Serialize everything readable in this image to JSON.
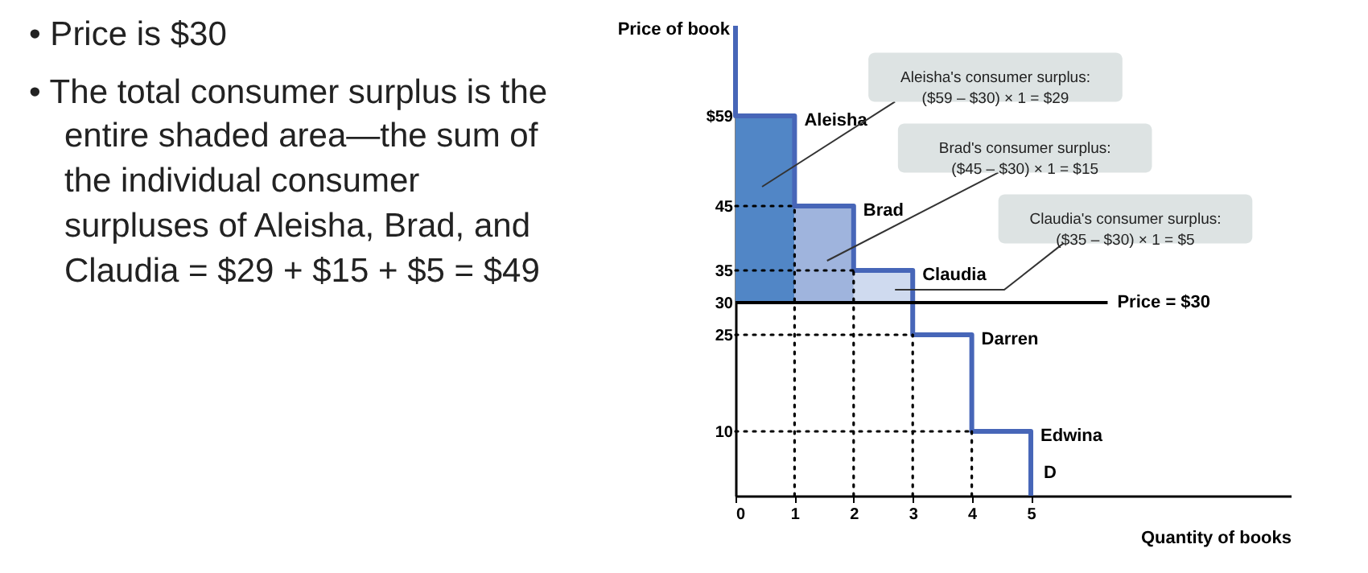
{
  "chart_data": {
    "type": "line",
    "xlabel": "Quantity of books",
    "ylabel": "Price of book",
    "xlim": [
      0,
      9.4
    ],
    "ylim": [
      0,
      73
    ],
    "xticks": [
      0,
      1,
      2,
      3,
      4,
      5
    ],
    "yticks": [
      10,
      25,
      30,
      35,
      45,
      {
        "value": 59,
        "label": "$59"
      }
    ],
    "grid": false,
    "series": [
      {
        "type": "bar",
        "x": [
          0.5,
          1.5,
          2.5
        ],
        "base": [
          30,
          30,
          30
        ],
        "values": [
          29,
          15,
          5
        ],
        "colors": [
          "#5186c6",
          "#9fb4dd",
          "#cfdaef"
        ]
      },
      {
        "name": "D",
        "color": "#4766b8",
        "x": [
          0,
          0,
          1,
          1,
          2,
          2,
          3,
          3,
          4,
          4,
          5,
          5
        ],
        "values": [
          73,
          59,
          59,
          45,
          45,
          35,
          35,
          25,
          25,
          10,
          10,
          0
        ]
      },
      {
        "name": "Price = $30",
        "color": "#000000",
        "x": [
          0,
          6.3
        ],
        "values": [
          30,
          30
        ]
      },
      {
        "color": "#000000",
        "line_style": "dotted",
        "x": [
          0,
          1
        ],
        "values": [
          45,
          45
        ]
      },
      {
        "color": "#000000",
        "line_style": "dotted",
        "x": [
          0,
          2
        ],
        "values": [
          35,
          35
        ]
      },
      {
        "color": "#000000",
        "line_style": "dotted",
        "x": [
          0,
          3
        ],
        "values": [
          25,
          25
        ]
      },
      {
        "color": "#000000",
        "line_style": "dotted",
        "x": [
          0,
          4
        ],
        "values": [
          10,
          10
        ]
      },
      {
        "color": "#000000",
        "line_style": "dotted",
        "x": [
          1,
          1
        ],
        "values": [
          0,
          45
        ]
      },
      {
        "color": "#000000",
        "line_style": "dotted",
        "x": [
          2,
          2
        ],
        "values": [
          0,
          35
        ]
      },
      {
        "color": "#000000",
        "line_style": "dotted",
        "x": [
          3,
          3
        ],
        "values": [
          0,
          25
        ]
      },
      {
        "color": "#000000",
        "line_style": "dotted",
        "x": [
          4,
          4
        ],
        "values": [
          0,
          10
        ]
      }
    ],
    "annotations": [
      "• Price is $30",
      "• The total consumer surplus is the entire shaded area—the sum of the individual consumer surpluses of Aleisha, Brad, and Claudia = $29 + $15 + $5 = $49",
      {
        "text": "Aleisha",
        "x": 1,
        "y": 59
      },
      {
        "text": "Brad",
        "x": 2,
        "y": 45
      },
      {
        "text": "Claudia",
        "x": 3,
        "y": 35
      },
      {
        "text": "Darren",
        "x": 4,
        "y": 25
      },
      {
        "text": "Edwina",
        "x": 5,
        "y": 10
      },
      "Aleisha's consumer surplus:\n($59 – $30) × 1 = $29",
      "Brad's consumer surplus:\n($45 – $30) × 1 = $15",
      "Claudia's consumer surplus:\n($35 – $30) × 1 = $5"
    ]
  }
}
